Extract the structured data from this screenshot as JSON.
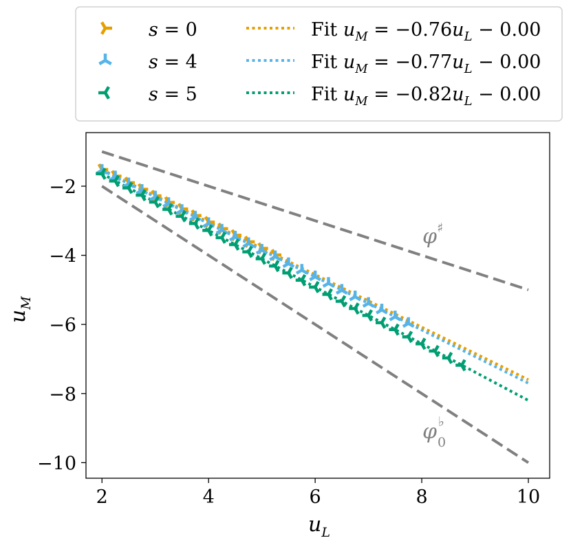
{
  "chart_data": {
    "type": "line",
    "xlabel": "u",
    "xlabel_sub": "L",
    "ylabel": "u",
    "ylabel_sub": "M",
    "xlim": [
      1.7,
      10.4
    ],
    "ylim": [
      -10.45,
      -0.45
    ],
    "x_ticks": [
      2,
      4,
      6,
      8,
      10
    ],
    "y_ticks": [
      -2,
      -4,
      -6,
      -8,
      -10
    ],
    "x_tick_labels": [
      "2",
      "4",
      "6",
      "8",
      "10"
    ],
    "y_tick_labels": [
      "−2",
      "−4",
      "−6",
      "−8",
      "−10"
    ],
    "grid": false,
    "legend_position": "above",
    "series": [
      {
        "name": "s = 0",
        "label_var": "s",
        "label_val": "= 0",
        "color": "#E69F00",
        "marker": "tri_right",
        "x": [
          2.0,
          2.25,
          2.5,
          2.75,
          3.0,
          3.25,
          3.5,
          3.75,
          4.0,
          4.25,
          4.5,
          4.75,
          5.0,
          5.25
        ],
        "y": [
          -1.52,
          -1.71,
          -1.9,
          -2.09,
          -2.28,
          -2.47,
          -2.66,
          -2.85,
          -3.04,
          -3.23,
          -3.42,
          -3.61,
          -3.8,
          -3.99
        ]
      },
      {
        "name": "s = 4",
        "label_var": "s",
        "label_val": "= 4",
        "color": "#56B4E9",
        "marker": "tri_up",
        "x": [
          2.0,
          2.25,
          2.5,
          2.75,
          3.0,
          3.25,
          3.5,
          3.75,
          4.0,
          4.25,
          4.5,
          4.75,
          5.0,
          5.25,
          5.5,
          5.75,
          6.0,
          6.25,
          6.5,
          6.75,
          7.0,
          7.25,
          7.5,
          7.75
        ],
        "y": [
          -1.54,
          -1.73,
          -1.93,
          -2.12,
          -2.31,
          -2.5,
          -2.7,
          -2.89,
          -3.08,
          -3.27,
          -3.47,
          -3.66,
          -3.85,
          -4.04,
          -4.24,
          -4.43,
          -4.62,
          -4.81,
          -5.01,
          -5.2,
          -5.39,
          -5.58,
          -5.78,
          -5.97
        ]
      },
      {
        "name": "s = 5",
        "label_var": "s",
        "label_val": "= 5",
        "color": "#009E73",
        "marker": "tri_left",
        "x": [
          2.0,
          2.25,
          2.5,
          2.75,
          3.0,
          3.25,
          3.5,
          3.75,
          4.0,
          4.25,
          4.5,
          4.75,
          5.0,
          5.25,
          5.5,
          5.75,
          6.0,
          6.25,
          6.5,
          6.75,
          7.0,
          7.25,
          7.5,
          7.75,
          8.0,
          8.25,
          8.5,
          8.75
        ],
        "y": [
          -1.64,
          -1.85,
          -2.05,
          -2.26,
          -2.46,
          -2.67,
          -2.87,
          -3.08,
          -3.28,
          -3.49,
          -3.69,
          -3.9,
          -4.1,
          -4.31,
          -4.51,
          -4.72,
          -4.92,
          -5.13,
          -5.33,
          -5.54,
          -5.74,
          -5.95,
          -6.15,
          -6.36,
          -6.56,
          -6.77,
          -6.97,
          -7.18
        ]
      }
    ],
    "fits": [
      {
        "name": "Fit u_M = −0.76u_L − 0.00",
        "prefix": "Fit ",
        "slope": -0.76,
        "intercept": 0.0,
        "slope_text": "= −0.76",
        "tail_text": " − 0.00",
        "color": "#E69F00",
        "x_range": [
          2,
          10
        ]
      },
      {
        "name": "Fit u_M = −0.77u_L − 0.00",
        "prefix": "Fit ",
        "slope": -0.77,
        "intercept": 0.0,
        "slope_text": "= −0.77",
        "tail_text": " − 0.00",
        "color": "#56B4E9",
        "x_range": [
          2,
          10
        ]
      },
      {
        "name": "Fit u_M = −0.82u_L − 0.00",
        "prefix": "Fit ",
        "slope": -0.82,
        "intercept": 0.0,
        "slope_text": "= −0.82",
        "tail_text": " − 0.00",
        "color": "#009E73",
        "x_range": [
          2,
          10
        ]
      }
    ],
    "bounds": [
      {
        "name": "phi-sharp",
        "slope": -0.5,
        "color": "#808080",
        "label": "φ",
        "label_sup": "♯",
        "label_sub": ""
      },
      {
        "name": "phi-flat-0",
        "slope": -1.0,
        "color": "#808080",
        "label": "φ",
        "label_sup": "♭",
        "label_sub": "0"
      }
    ],
    "fit_u": "u",
    "fit_sub_M": "M",
    "fit_sub_L": "L"
  }
}
